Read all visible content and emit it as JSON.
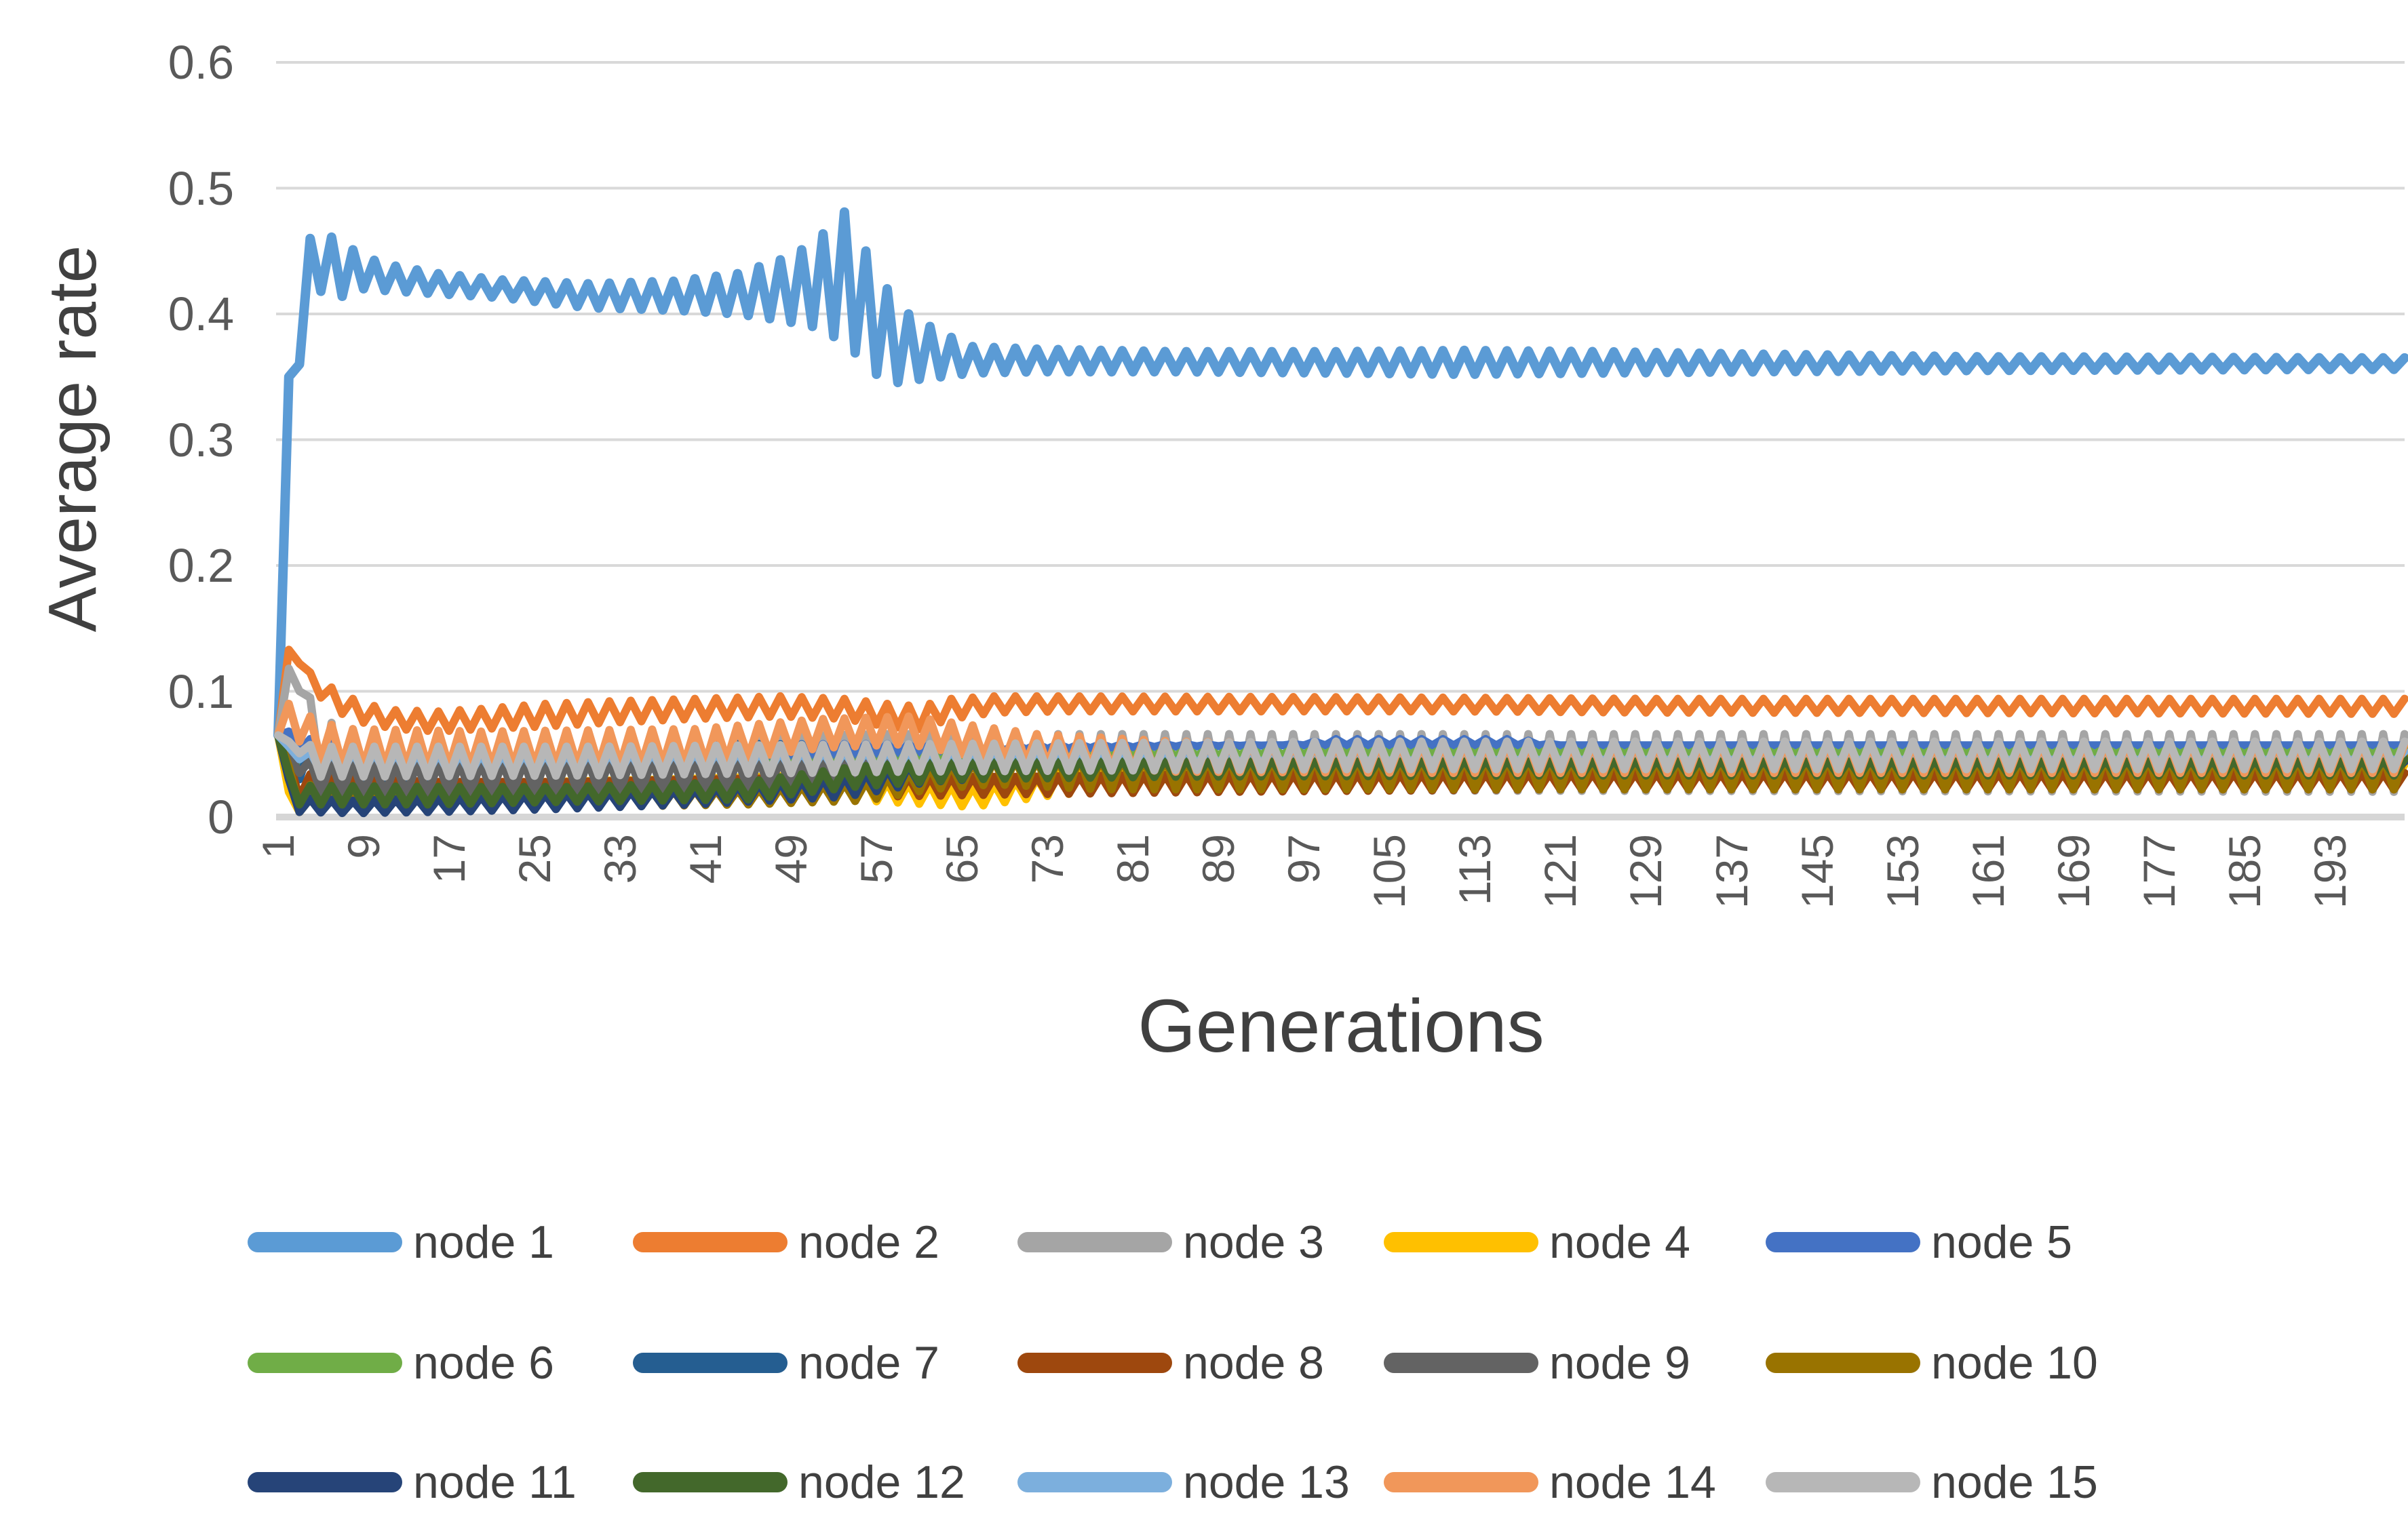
{
  "chart_data": {
    "type": "line",
    "title": "",
    "xlabel": "Generations",
    "ylabel": "Average rate",
    "xlim": [
      1,
      200
    ],
    "ylim": [
      0,
      0.6
    ],
    "grid": "horizontal",
    "legend_position": "bottom",
    "gridline_color": "#D9D9D9",
    "axis_line_color": "#D6D6D6",
    "tick_label_color": "#595959",
    "axis_title_color": "#404040",
    "y_ticks": [
      {
        "value": 0,
        "label": "0"
      },
      {
        "value": 0.1,
        "label": "0.1"
      },
      {
        "value": 0.2,
        "label": "0.2"
      },
      {
        "value": 0.3,
        "label": "0.3"
      },
      {
        "value": 0.4,
        "label": "0.4"
      },
      {
        "value": 0.5,
        "label": "0.5"
      },
      {
        "value": 0.6,
        "label": "0.6"
      }
    ],
    "x_ticks": [
      1,
      9,
      17,
      25,
      33,
      41,
      49,
      57,
      65,
      73,
      81,
      89,
      97,
      105,
      113,
      121,
      129,
      137,
      145,
      153,
      161,
      169,
      177,
      185,
      193
    ],
    "envelope_format": "Each series oscillates generation-to-generation; entries are [generation, min, max] keyframes of the oscillation envelope (min==max means smooth line). Values estimated from gridlines.",
    "series": [
      {
        "name": "node 1",
        "color": "#5B9BD5",
        "envelope": [
          [
            1,
            0.065,
            0.065
          ],
          [
            2,
            0.35,
            0.35
          ],
          [
            3,
            0.36,
            0.36
          ],
          [
            4,
            0.46,
            0.46
          ],
          [
            5,
            0.418,
            0.465
          ],
          [
            7,
            0.414,
            0.457
          ],
          [
            9,
            0.42,
            0.445
          ],
          [
            12,
            0.418,
            0.438
          ],
          [
            16,
            0.416,
            0.432
          ],
          [
            22,
            0.413,
            0.427
          ],
          [
            30,
            0.405,
            0.424
          ],
          [
            38,
            0.403,
            0.426
          ],
          [
            44,
            0.4,
            0.432
          ],
          [
            48,
            0.395,
            0.443
          ],
          [
            51,
            0.39,
            0.455
          ],
          [
            54,
            0.378,
            0.481
          ],
          [
            56,
            0.36,
            0.45
          ],
          [
            58,
            0.344,
            0.42
          ],
          [
            60,
            0.347,
            0.4
          ],
          [
            63,
            0.35,
            0.385
          ],
          [
            66,
            0.353,
            0.374
          ],
          [
            72,
            0.354,
            0.372
          ],
          [
            85,
            0.354,
            0.37
          ],
          [
            100,
            0.353,
            0.37
          ],
          [
            112,
            0.352,
            0.371
          ],
          [
            125,
            0.353,
            0.37
          ],
          [
            140,
            0.354,
            0.368
          ],
          [
            160,
            0.355,
            0.366
          ],
          [
            200,
            0.356,
            0.365
          ]
        ]
      },
      {
        "name": "node 2",
        "color": "#ED7D31",
        "envelope": [
          [
            1,
            0.065,
            0.065
          ],
          [
            2,
            0.133,
            0.133
          ],
          [
            3,
            0.122,
            0.122
          ],
          [
            4,
            0.105,
            0.115
          ],
          [
            5,
            0.095,
            0.108
          ],
          [
            7,
            0.082,
            0.098
          ],
          [
            9,
            0.075,
            0.09
          ],
          [
            12,
            0.07,
            0.085
          ],
          [
            16,
            0.068,
            0.084
          ],
          [
            20,
            0.07,
            0.086
          ],
          [
            26,
            0.072,
            0.09
          ],
          [
            32,
            0.075,
            0.092
          ],
          [
            40,
            0.078,
            0.094
          ],
          [
            48,
            0.08,
            0.096
          ],
          [
            54,
            0.078,
            0.094
          ],
          [
            58,
            0.072,
            0.09
          ],
          [
            61,
            0.07,
            0.088
          ],
          [
            64,
            0.078,
            0.094
          ],
          [
            68,
            0.083,
            0.096
          ],
          [
            75,
            0.084,
            0.096
          ],
          [
            110,
            0.084,
            0.095
          ],
          [
            130,
            0.083,
            0.094
          ],
          [
            200,
            0.082,
            0.094
          ]
        ]
      },
      {
        "name": "node 3",
        "color": "#A5A5A5",
        "envelope": [
          [
            1,
            0.065,
            0.065
          ],
          [
            2,
            0.118,
            0.118
          ],
          [
            3,
            0.1,
            0.112
          ],
          [
            4,
            0.06,
            0.095
          ],
          [
            5,
            0.03,
            0.08
          ],
          [
            7,
            0.015,
            0.07
          ],
          [
            9,
            0.01,
            0.066
          ],
          [
            14,
            0.007,
            0.062
          ],
          [
            22,
            0.006,
            0.06
          ],
          [
            32,
            0.008,
            0.061
          ],
          [
            42,
            0.01,
            0.063
          ],
          [
            52,
            0.013,
            0.065
          ],
          [
            58,
            0.02,
            0.066
          ],
          [
            64,
            0.026,
            0.066
          ],
          [
            75,
            0.024,
            0.066
          ],
          [
            100,
            0.021,
            0.066
          ],
          [
            200,
            0.02,
            0.066
          ]
        ]
      },
      {
        "name": "node 4",
        "color": "#FFC000",
        "envelope": [
          [
            1,
            0.065,
            0.065
          ],
          [
            2,
            0.02,
            0.02
          ],
          [
            3,
            0.004,
            0.014
          ],
          [
            6,
            0.004,
            0.016
          ],
          [
            10,
            0.008,
            0.02
          ],
          [
            16,
            0.012,
            0.026
          ],
          [
            26,
            0.014,
            0.028
          ],
          [
            38,
            0.014,
            0.03
          ],
          [
            50,
            0.016,
            0.033
          ],
          [
            58,
            0.012,
            0.028
          ],
          [
            66,
            0.008,
            0.024
          ],
          [
            74,
            0.018,
            0.034
          ],
          [
            90,
            0.024,
            0.04
          ],
          [
            120,
            0.026,
            0.042
          ],
          [
            200,
            0.026,
            0.042
          ]
        ]
      },
      {
        "name": "node 5",
        "color": "#4472C4",
        "envelope": [
          [
            1,
            0.065,
            0.065
          ],
          [
            2,
            0.068,
            0.068
          ],
          [
            3,
            0.052,
            0.064
          ],
          [
            5,
            0.047,
            0.06
          ],
          [
            10,
            0.045,
            0.058
          ],
          [
            25,
            0.045,
            0.058
          ],
          [
            45,
            0.047,
            0.058
          ],
          [
            60,
            0.05,
            0.058
          ],
          [
            72,
            0.054,
            0.058
          ],
          [
            85,
            0.056,
            0.058
          ],
          [
            95,
            0.057,
            0.057
          ],
          [
            100,
            0.057,
            0.062
          ],
          [
            117,
            0.057,
            0.062
          ],
          [
            121,
            0.057,
            0.057
          ],
          [
            200,
            0.057,
            0.057
          ]
        ]
      },
      {
        "name": "node 6",
        "color": "#70AD47",
        "envelope": [
          [
            1,
            0.065,
            0.065
          ],
          [
            2,
            0.054,
            0.054
          ],
          [
            3,
            0.04,
            0.055
          ],
          [
            6,
            0.035,
            0.052
          ],
          [
            14,
            0.033,
            0.05
          ],
          [
            26,
            0.035,
            0.052
          ],
          [
            42,
            0.038,
            0.053
          ],
          [
            56,
            0.04,
            0.054
          ],
          [
            66,
            0.045,
            0.054
          ],
          [
            80,
            0.048,
            0.054
          ],
          [
            100,
            0.05,
            0.055
          ],
          [
            200,
            0.05,
            0.055
          ]
        ]
      },
      {
        "name": "node 7",
        "color": "#255E91",
        "envelope": [
          [
            1,
            0.065,
            0.065
          ],
          [
            2,
            0.06,
            0.06
          ],
          [
            3,
            0.03,
            0.058
          ],
          [
            5,
            0.025,
            0.056
          ],
          [
            12,
            0.025,
            0.056
          ],
          [
            22,
            0.026,
            0.056
          ],
          [
            34,
            0.027,
            0.057
          ],
          [
            46,
            0.028,
            0.058
          ],
          [
            56,
            0.029,
            0.057
          ],
          [
            62,
            0.033,
            0.056
          ],
          [
            68,
            0.036,
            0.054
          ],
          [
            75,
            0.038,
            0.052
          ],
          [
            85,
            0.041,
            0.049
          ],
          [
            95,
            0.042,
            0.047
          ],
          [
            110,
            0.043,
            0.046
          ],
          [
            200,
            0.043,
            0.046
          ]
        ]
      },
      {
        "name": "node 8",
        "color": "#9E480E",
        "envelope": [
          [
            1,
            0.065,
            0.065
          ],
          [
            2,
            0.045,
            0.045
          ],
          [
            3,
            0.015,
            0.035
          ],
          [
            8,
            0.012,
            0.03
          ],
          [
            16,
            0.012,
            0.028
          ],
          [
            28,
            0.013,
            0.028
          ],
          [
            42,
            0.014,
            0.03
          ],
          [
            56,
            0.016,
            0.032
          ],
          [
            70,
            0.018,
            0.032
          ],
          [
            90,
            0.02,
            0.034
          ],
          [
            120,
            0.022,
            0.035
          ],
          [
            200,
            0.022,
            0.035
          ]
        ]
      },
      {
        "name": "node 9",
        "color": "#636363",
        "envelope": [
          [
            1,
            0.065,
            0.065
          ],
          [
            2,
            0.05,
            0.05
          ],
          [
            4,
            0.02,
            0.045
          ],
          [
            10,
            0.018,
            0.042
          ],
          [
            25,
            0.02,
            0.044
          ],
          [
            45,
            0.022,
            0.046
          ],
          [
            65,
            0.028,
            0.046
          ],
          [
            90,
            0.03,
            0.046
          ],
          [
            120,
            0.032,
            0.045
          ],
          [
            200,
            0.032,
            0.045
          ]
        ]
      },
      {
        "name": "node 10",
        "color": "#997300",
        "envelope": [
          [
            1,
            0.065,
            0.065
          ],
          [
            2,
            0.04,
            0.04
          ],
          [
            3,
            0.008,
            0.026
          ],
          [
            10,
            0.006,
            0.022
          ],
          [
            30,
            0.008,
            0.02
          ],
          [
            45,
            0.01,
            0.022
          ],
          [
            56,
            0.013,
            0.028
          ],
          [
            62,
            0.022,
            0.04
          ],
          [
            68,
            0.026,
            0.046
          ],
          [
            78,
            0.022,
            0.048
          ],
          [
            200,
            0.022,
            0.048
          ]
        ]
      },
      {
        "name": "node 11",
        "color": "#264478",
        "envelope": [
          [
            1,
            0.065,
            0.065
          ],
          [
            2,
            0.03,
            0.03
          ],
          [
            3,
            0.004,
            0.015
          ],
          [
            8,
            0.003,
            0.013
          ],
          [
            16,
            0.004,
            0.015
          ],
          [
            26,
            0.006,
            0.018
          ],
          [
            40,
            0.01,
            0.022
          ],
          [
            54,
            0.016,
            0.032
          ],
          [
            62,
            0.028,
            0.044
          ],
          [
            70,
            0.032,
            0.045
          ],
          [
            85,
            0.035,
            0.045
          ],
          [
            110,
            0.037,
            0.044
          ],
          [
            200,
            0.037,
            0.044
          ]
        ]
      },
      {
        "name": "node 12",
        "color": "#43682B",
        "envelope": [
          [
            1,
            0.065,
            0.065
          ],
          [
            2,
            0.035,
            0.035
          ],
          [
            3,
            0.01,
            0.025
          ],
          [
            15,
            0.01,
            0.024
          ],
          [
            28,
            0.012,
            0.024
          ],
          [
            45,
            0.014,
            0.028
          ],
          [
            55,
            0.024,
            0.04
          ],
          [
            65,
            0.03,
            0.045
          ],
          [
            85,
            0.032,
            0.046
          ],
          [
            120,
            0.033,
            0.046
          ],
          [
            200,
            0.033,
            0.046
          ]
        ]
      },
      {
        "name": "node 13",
        "color": "#7CAFDD",
        "envelope": [
          [
            1,
            0.065,
            0.065
          ],
          [
            2,
            0.056,
            0.056
          ],
          [
            4,
            0.036,
            0.052
          ],
          [
            20,
            0.035,
            0.05
          ],
          [
            50,
            0.038,
            0.052
          ],
          [
            80,
            0.042,
            0.053
          ],
          [
            120,
            0.044,
            0.052
          ],
          [
            200,
            0.044,
            0.052
          ]
        ]
      },
      {
        "name": "node 14",
        "color": "#F1975A",
        "envelope": [
          [
            1,
            0.065,
            0.065
          ],
          [
            2,
            0.09,
            0.09
          ],
          [
            3,
            0.06,
            0.085
          ],
          [
            5,
            0.045,
            0.075
          ],
          [
            8,
            0.04,
            0.07
          ],
          [
            20,
            0.04,
            0.068
          ],
          [
            40,
            0.042,
            0.07
          ],
          [
            52,
            0.055,
            0.078
          ],
          [
            60,
            0.058,
            0.08
          ],
          [
            65,
            0.05,
            0.074
          ],
          [
            72,
            0.042,
            0.066
          ],
          [
            85,
            0.036,
            0.06
          ],
          [
            110,
            0.035,
            0.058
          ],
          [
            200,
            0.035,
            0.058
          ]
        ]
      },
      {
        "name": "node 15",
        "color": "#B7B7B7",
        "envelope": [
          [
            1,
            0.065,
            0.065
          ],
          [
            2,
            0.06,
            0.06
          ],
          [
            5,
            0.032,
            0.056
          ],
          [
            30,
            0.033,
            0.056
          ],
          [
            60,
            0.036,
            0.058
          ],
          [
            100,
            0.038,
            0.06
          ],
          [
            200,
            0.038,
            0.06
          ]
        ]
      }
    ]
  }
}
